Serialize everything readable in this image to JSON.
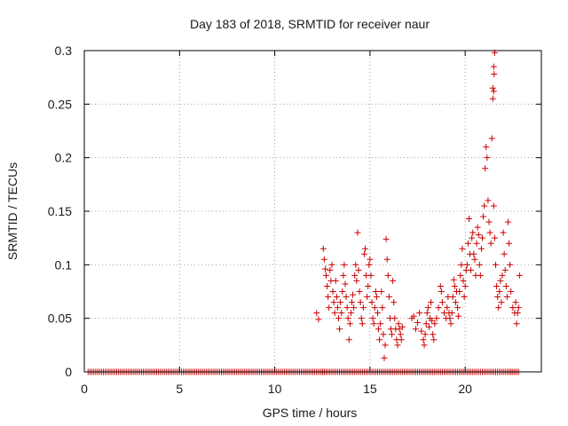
{
  "chart_data": {
    "type": "scatter",
    "title": "Day 183 of 2018, SRMTID for receiver naur",
    "xlabel": "GPS time / hours",
    "ylabel": "SRMTID / TECUs",
    "xlim": [
      0,
      24
    ],
    "ylim": [
      0,
      0.3
    ],
    "xticks": [
      0,
      5,
      10,
      15,
      20
    ],
    "yticks": [
      0,
      0.05,
      0.1,
      0.15,
      0.2,
      0.25,
      0.3
    ],
    "xtick_labels": [
      "0",
      "5",
      "10",
      "15",
      "20"
    ],
    "ytick_labels": [
      "0",
      "0.05",
      "0.1",
      "0.15",
      "0.2",
      "0.25",
      "0.3"
    ],
    "grid": true,
    "marker": "+",
    "marker_color": "#cc0000",
    "grid_color": "#a0a0a0",
    "series": [
      {
        "name": "SRMTID",
        "points": [
          [
            12.0,
            0.0
          ],
          [
            12.2,
            0.055
          ],
          [
            12.3,
            0.049
          ],
          [
            12.6,
            0.0
          ],
          [
            12.5,
            0.0
          ],
          [
            12.7,
            0.0
          ],
          [
            12.55,
            0.115
          ],
          [
            12.6,
            0.105
          ],
          [
            12.65,
            0.096
          ],
          [
            12.7,
            0.09
          ],
          [
            12.75,
            0.08
          ],
          [
            12.8,
            0.07
          ],
          [
            12.85,
            0.06
          ],
          [
            12.9,
            0.095
          ],
          [
            12.95,
            0.085
          ],
          [
            13.0,
            0.1
          ],
          [
            13.05,
            0.075
          ],
          [
            13.1,
            0.065
          ],
          [
            13.15,
            0.055
          ],
          [
            13.2,
            0.085
          ],
          [
            13.25,
            0.07
          ],
          [
            13.3,
            0.06
          ],
          [
            13.35,
            0.05
          ],
          [
            13.4,
            0.04
          ],
          [
            13.45,
            0.065
          ],
          [
            13.5,
            0.055
          ],
          [
            13.55,
            0.075
          ],
          [
            13.6,
            0.09
          ],
          [
            13.65,
            0.1
          ],
          [
            13.7,
            0.082
          ],
          [
            13.75,
            0.07
          ],
          [
            13.8,
            0.06
          ],
          [
            13.85,
            0.05
          ],
          [
            13.9,
            0.03
          ],
          [
            13.95,
            0.045
          ],
          [
            14.0,
            0.055
          ],
          [
            14.05,
            0.065
          ],
          [
            14.1,
            0.072
          ],
          [
            14.15,
            0.06
          ],
          [
            14.2,
            0.09
          ],
          [
            14.25,
            0.1
          ],
          [
            14.3,
            0.085
          ],
          [
            14.35,
            0.13
          ],
          [
            14.4,
            0.095
          ],
          [
            14.45,
            0.075
          ],
          [
            14.5,
            0.065
          ],
          [
            14.55,
            0.05
          ],
          [
            14.6,
            0.045
          ],
          [
            14.65,
            0.06
          ],
          [
            14.7,
            0.11
          ],
          [
            14.75,
            0.115
          ],
          [
            14.8,
            0.09
          ],
          [
            14.85,
            0.07
          ],
          [
            14.9,
            0.08
          ],
          [
            14.95,
            0.1
          ],
          [
            15.0,
            0.105
          ],
          [
            15.05,
            0.09
          ],
          [
            15.1,
            0.065
          ],
          [
            15.15,
            0.05
          ],
          [
            15.2,
            0.045
          ],
          [
            15.25,
            0.06
          ],
          [
            15.3,
            0.075
          ],
          [
            15.35,
            0.07
          ],
          [
            15.4,
            0.055
          ],
          [
            15.45,
            0.04
          ],
          [
            15.5,
            0.03
          ],
          [
            15.55,
            0.045
          ],
          [
            15.6,
            0.075
          ],
          [
            15.65,
            0.06
          ],
          [
            15.7,
            0.035
          ],
          [
            15.75,
            0.013
          ],
          [
            15.8,
            0.025
          ],
          [
            15.85,
            0.124
          ],
          [
            15.9,
            0.105
          ],
          [
            15.95,
            0.09
          ],
          [
            16.0,
            0.07
          ],
          [
            16.05,
            0.05
          ],
          [
            16.1,
            0.04
          ],
          [
            16.15,
            0.035
          ],
          [
            16.2,
            0.085
          ],
          [
            16.25,
            0.065
          ],
          [
            16.3,
            0.05
          ],
          [
            16.35,
            0.04
          ],
          [
            16.4,
            0.03
          ],
          [
            16.45,
            0.025
          ],
          [
            16.5,
            0.045
          ],
          [
            16.55,
            0.04
          ],
          [
            16.6,
            0.035
          ],
          [
            16.65,
            0.03
          ],
          [
            16.7,
            0.042
          ],
          [
            17.2,
            0.05
          ],
          [
            17.3,
            0.052
          ],
          [
            17.4,
            0.04
          ],
          [
            17.5,
            0.046
          ],
          [
            17.6,
            0.055
          ],
          [
            17.7,
            0.038
          ],
          [
            17.8,
            0.03
          ],
          [
            17.85,
            0.025
          ],
          [
            17.9,
            0.035
          ],
          [
            17.95,
            0.045
          ],
          [
            18.0,
            0.055
          ],
          [
            18.05,
            0.06
          ],
          [
            18.1,
            0.042
          ],
          [
            18.15,
            0.05
          ],
          [
            18.2,
            0.065
          ],
          [
            18.25,
            0.048
          ],
          [
            18.3,
            0.035
          ],
          [
            18.35,
            0.03
          ],
          [
            18.4,
            0.045
          ],
          [
            18.5,
            0.05
          ],
          [
            18.6,
            0.06
          ],
          [
            18.7,
            0.08
          ],
          [
            18.75,
            0.075
          ],
          [
            18.8,
            0.065
          ],
          [
            18.9,
            0.055
          ],
          [
            19.0,
            0.05
          ],
          [
            19.05,
            0.06
          ],
          [
            19.1,
            0.07
          ],
          [
            19.15,
            0.055
          ],
          [
            19.2,
            0.05
          ],
          [
            19.25,
            0.045
          ],
          [
            19.3,
            0.055
          ],
          [
            19.35,
            0.07
          ],
          [
            19.4,
            0.086
          ],
          [
            19.45,
            0.08
          ],
          [
            19.5,
            0.065
          ],
          [
            19.55,
            0.075
          ],
          [
            19.6,
            0.06
          ],
          [
            19.65,
            0.052
          ],
          [
            19.7,
            0.075
          ],
          [
            19.75,
            0.09
          ],
          [
            19.8,
            0.1
          ],
          [
            19.85,
            0.115
          ],
          [
            19.9,
            0.085
          ],
          [
            19.95,
            0.07
          ],
          [
            20.0,
            0.08
          ],
          [
            20.05,
            0.095
          ],
          [
            20.1,
            0.1
          ],
          [
            20.15,
            0.12
          ],
          [
            20.2,
            0.143
          ],
          [
            20.25,
            0.11
          ],
          [
            20.3,
            0.095
          ],
          [
            20.35,
            0.125
          ],
          [
            20.4,
            0.13
          ],
          [
            20.45,
            0.11
          ],
          [
            20.5,
            0.105
          ],
          [
            20.55,
            0.09
          ],
          [
            20.6,
            0.12
          ],
          [
            20.65,
            0.135
          ],
          [
            20.7,
            0.128
          ],
          [
            20.75,
            0.1
          ],
          [
            20.8,
            0.09
          ],
          [
            20.85,
            0.115
          ],
          [
            20.9,
            0.125
          ],
          [
            20.95,
            0.145
          ],
          [
            21.0,
            0.155
          ],
          [
            21.05,
            0.19
          ],
          [
            21.1,
            0.21
          ],
          [
            21.15,
            0.2
          ],
          [
            21.2,
            0.16
          ],
          [
            21.25,
            0.14
          ],
          [
            21.3,
            0.13
          ],
          [
            21.35,
            0.12
          ],
          [
            21.4,
            0.218
          ],
          [
            21.45,
            0.255
          ],
          [
            21.5,
            0.262
          ],
          [
            21.52,
            0.278
          ],
          [
            21.55,
            0.298
          ],
          [
            21.5,
            0.285
          ],
          [
            21.45,
            0.265
          ],
          [
            21.5,
            0.155
          ],
          [
            21.55,
            0.125
          ],
          [
            21.6,
            0.1
          ],
          [
            21.65,
            0.08
          ],
          [
            21.7,
            0.07
          ],
          [
            21.75,
            0.06
          ],
          [
            21.8,
            0.075
          ],
          [
            21.85,
            0.085
          ],
          [
            21.9,
            0.065
          ],
          [
            21.95,
            0.09
          ],
          [
            22.0,
            0.13
          ],
          [
            22.05,
            0.11
          ],
          [
            22.1,
            0.095
          ],
          [
            22.15,
            0.08
          ],
          [
            22.2,
            0.07
          ],
          [
            22.25,
            0.14
          ],
          [
            22.3,
            0.12
          ],
          [
            22.35,
            0.1
          ],
          [
            22.4,
            0.075
          ],
          [
            22.5,
            0.06
          ],
          [
            22.6,
            0.055
          ],
          [
            22.65,
            0.065
          ],
          [
            22.7,
            0.045
          ],
          [
            22.75,
            0.055
          ],
          [
            22.8,
            0.06
          ],
          [
            22.85,
            0.09
          ],
          [
            22.4,
            0.0
          ],
          [
            22.6,
            0.0
          ],
          [
            22.8,
            0.0
          ]
        ]
      }
    ]
  }
}
